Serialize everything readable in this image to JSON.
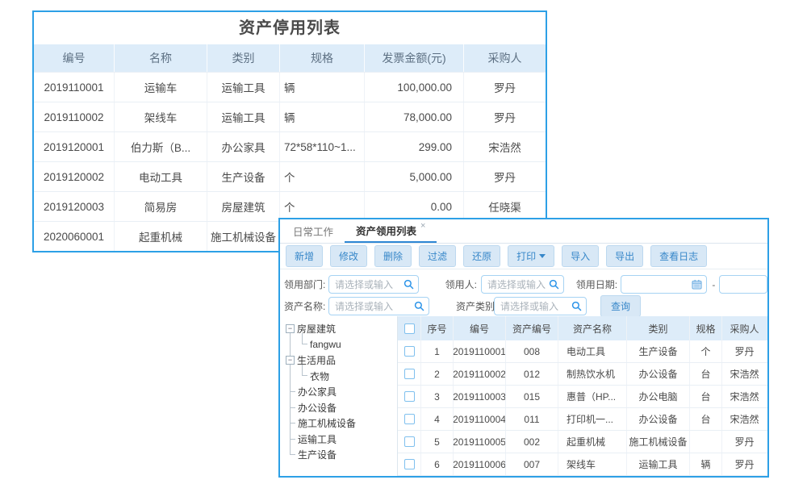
{
  "colors": {
    "panel_border": "#2da0e6",
    "table_header_bg": "#ddecf9",
    "link_blue": "#4aa0e8",
    "active_tab_underline": "#2f87d4",
    "button_blue_text": "#3787c9",
    "button_blue_bg": "#d8e8f6"
  },
  "stopped_panel": {
    "title": "资产停用列表",
    "columns": [
      "编号",
      "名称",
      "类别",
      "规格",
      "发票金额(元)",
      "采购人"
    ],
    "rows": [
      [
        "2019110001",
        "运输车",
        "运输工具",
        "辆",
        "100,000.00",
        "罗丹"
      ],
      [
        "2019110002",
        "架线车",
        "运输工具",
        "辆",
        "78,000.00",
        "罗丹"
      ],
      [
        "2019120001",
        "伯力斯（B...",
        "办公家具",
        "72*58*110~1...",
        "299.00",
        "宋浩然"
      ],
      [
        "2019120002",
        "电动工具",
        "生产设备",
        "个",
        "5,000.00",
        "罗丹"
      ],
      [
        "2019120003",
        "简易房",
        "房屋建筑",
        "个",
        "0.00",
        "任晓渠"
      ],
      [
        "2020060001",
        "起重机械",
        "施工机械设备",
        "",
        "",
        ""
      ]
    ]
  },
  "requisition_panel": {
    "tabs": [
      {
        "name": "daily-work",
        "label": "日常工作",
        "active": false,
        "closable": false
      },
      {
        "name": "requisition-list",
        "label": "资产领用列表",
        "active": true,
        "closable": true,
        "close_glyph": "×"
      }
    ],
    "toolbar": [
      {
        "name": "add",
        "label": "新增"
      },
      {
        "name": "edit",
        "label": "修改"
      },
      {
        "name": "delete",
        "label": "删除"
      },
      {
        "name": "filter",
        "label": "过滤"
      },
      {
        "name": "restore",
        "label": "还原"
      },
      {
        "name": "print",
        "label": "打印",
        "dropdown": true
      },
      {
        "name": "import",
        "label": "导入"
      },
      {
        "name": "export",
        "label": "导出"
      },
      {
        "name": "view-log",
        "label": "查看日志"
      }
    ],
    "filters": {
      "dept_label": "领用部门:",
      "user_label": "领用人:",
      "date_label": "领用日期:",
      "asset_name_label": "资产名称:",
      "asset_cat_label": "资产类别:",
      "placeholder": "请选择或输入",
      "date_start_value": "",
      "date_end_value": "",
      "range_separator": "-",
      "query_button": "查询"
    },
    "tree": {
      "nodes": [
        {
          "label": "房屋建筑",
          "expanded": true,
          "children": [
            {
              "label": "fangwu"
            }
          ]
        },
        {
          "label": "生活用品",
          "expanded": true,
          "children": [
            {
              "label": "衣物"
            }
          ]
        },
        {
          "label": "办公家具"
        },
        {
          "label": "办公设备"
        },
        {
          "label": "施工机械设备"
        },
        {
          "label": "运输工具"
        },
        {
          "label": "生产设备"
        }
      ],
      "collapse_glyph": "−"
    },
    "table": {
      "columns": [
        "序号",
        "编号",
        "资产编号",
        "资产名称",
        "类别",
        "规格",
        "采购人"
      ],
      "rows": [
        [
          "1",
          "2019110001",
          "008",
          "电动工具",
          "生产设备",
          "个",
          "罗丹"
        ],
        [
          "2",
          "2019110002",
          "012",
          "制热饮水机",
          "办公设备",
          "台",
          "宋浩然"
        ],
        [
          "3",
          "2019110003",
          "015",
          "惠普（HP...",
          "办公电脑",
          "台",
          "宋浩然"
        ],
        [
          "4",
          "2019110004",
          "011",
          "打印机一...",
          "办公设备",
          "台",
          "宋浩然"
        ],
        [
          "5",
          "2019110005",
          "002",
          "起重机械",
          "施工机械设备",
          "",
          "罗丹"
        ],
        [
          "6",
          "2019110006",
          "007",
          "架线车",
          "运输工具",
          "辆",
          "罗丹"
        ]
      ]
    }
  }
}
